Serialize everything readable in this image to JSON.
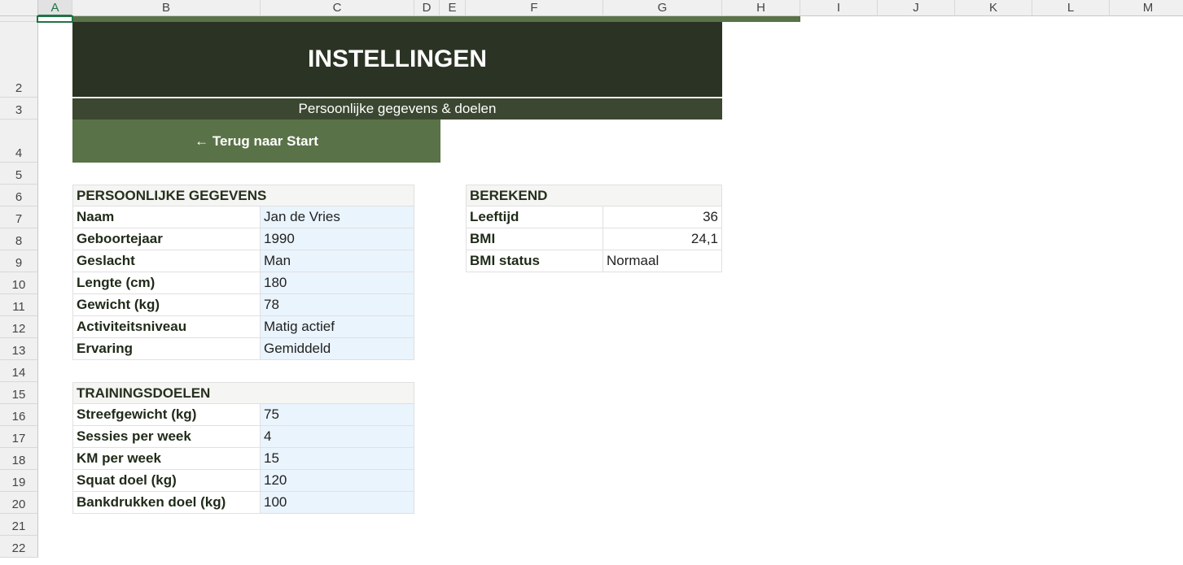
{
  "columns": [
    "A",
    "B",
    "C",
    "D",
    "E",
    "F",
    "G",
    "H",
    "I",
    "J",
    "K",
    "L",
    "M"
  ],
  "rows": [
    "",
    "2",
    "3",
    "4",
    "5",
    "6",
    "7",
    "8",
    "9",
    "10",
    "11",
    "12",
    "13",
    "14",
    "15",
    "16",
    "17",
    "18",
    "19",
    "20",
    "21",
    "22"
  ],
  "banner": {
    "title": "INSTELLINGEN",
    "subtitle": "Persoonlijke gegevens & doelen",
    "back_button": "← Terug naar Start"
  },
  "colors": {
    "banner_dark": "#2b3424",
    "subtitle_bg": "#3b4730",
    "button_green": "#5a7247",
    "input_bg": "#eaf4fd"
  },
  "personal": {
    "title": "PERSOONLIJKE GEGEVENS",
    "items": [
      {
        "label": "Naam",
        "value": "Jan de Vries"
      },
      {
        "label": "Geboortejaar",
        "value": "1990"
      },
      {
        "label": "Geslacht",
        "value": "Man"
      },
      {
        "label": "Lengte (cm)",
        "value": "180"
      },
      {
        "label": "Gewicht (kg)",
        "value": "78"
      },
      {
        "label": "Activiteitsniveau",
        "value": "Matig actief"
      },
      {
        "label": "Ervaring",
        "value": "Gemiddeld"
      }
    ]
  },
  "goals": {
    "title": "TRAININGSDOELEN",
    "items": [
      {
        "label": "Streefgewicht (kg)",
        "value": "75"
      },
      {
        "label": "Sessies per week",
        "value": "4"
      },
      {
        "label": "KM per week",
        "value": "15"
      },
      {
        "label": "Squat doel (kg)",
        "value": "120"
      },
      {
        "label": "Bankdrukken doel (kg)",
        "value": "100"
      }
    ]
  },
  "computed": {
    "title": "BEREKEND",
    "items": [
      {
        "label": "Leeftijd",
        "value": "36",
        "numeric": true
      },
      {
        "label": "BMI",
        "value": "24,1",
        "numeric": true
      },
      {
        "label": "BMI status",
        "value": "Normaal",
        "numeric": false
      }
    ]
  }
}
